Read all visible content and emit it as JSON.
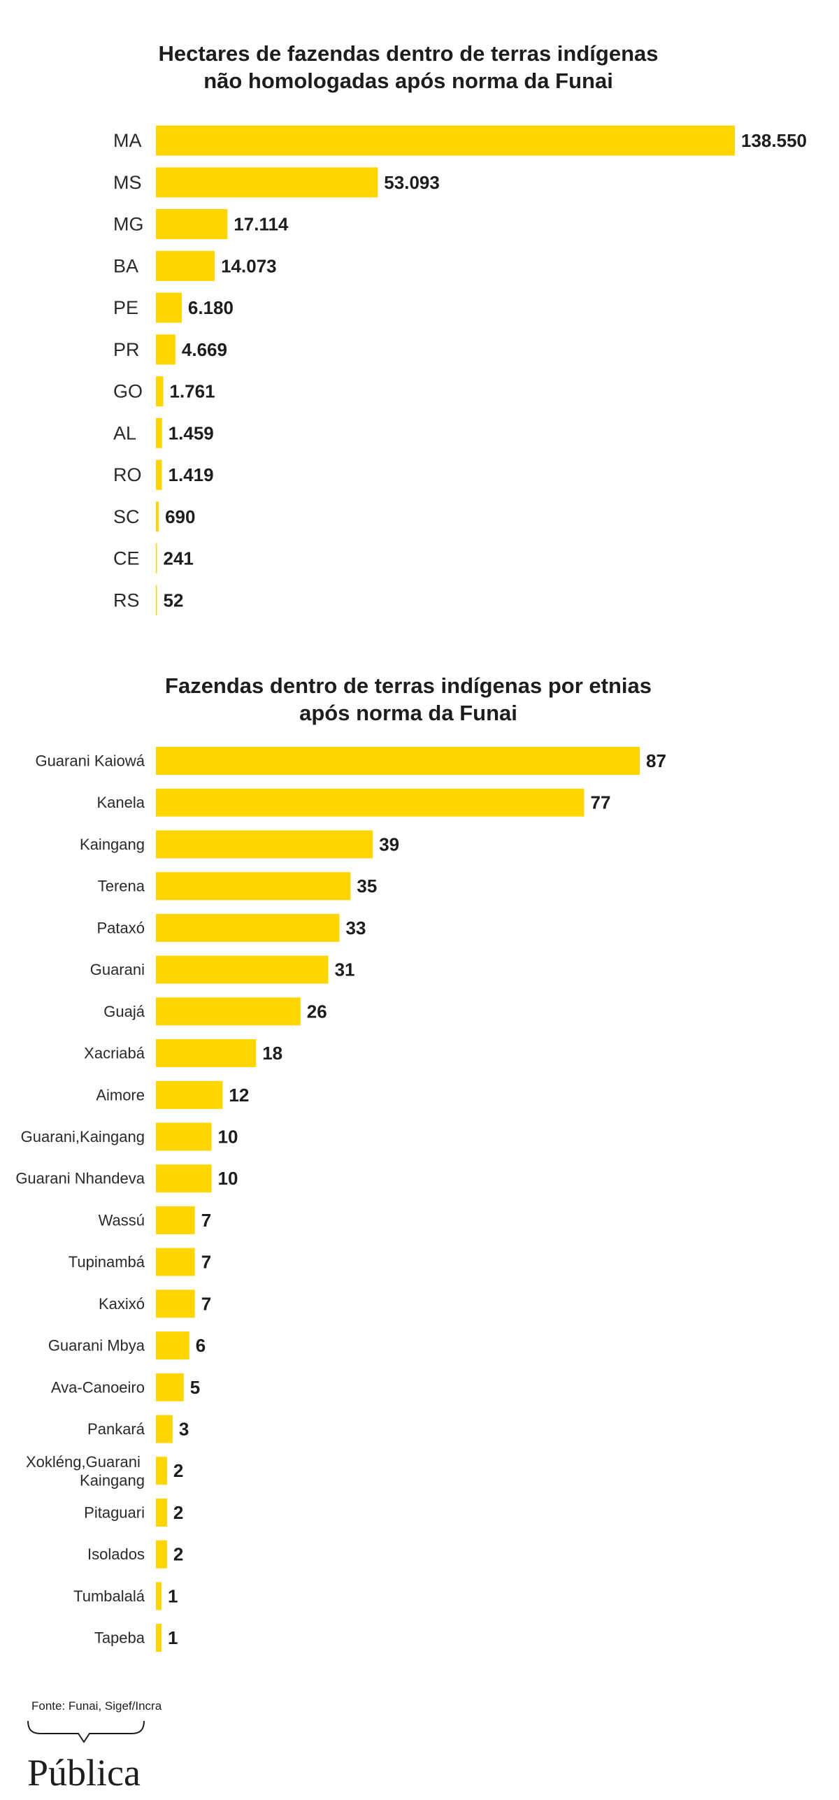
{
  "colors": {
    "background": "#ffffff",
    "bar": "#FFD500",
    "text": "#1d1d1b"
  },
  "chart_data": [
    {
      "type": "bar",
      "orientation": "horizontal",
      "title": "Hectares de fazendas dentro de terras indígenas\nnão homologadas após norma da Funai",
      "categories": [
        "MA",
        "MS",
        "MG",
        "BA",
        "PE",
        "PR",
        "GO",
        "AL",
        "RO",
        "SC",
        "CE",
        "RS"
      ],
      "values": [
        138550,
        53093,
        17114,
        14073,
        6180,
        4669,
        1761,
        1459,
        1419,
        690,
        241,
        52
      ],
      "xlim": [
        0,
        138550
      ],
      "grid": false,
      "legend": "none",
      "data_labels": true
    },
    {
      "type": "bar",
      "orientation": "horizontal",
      "title": "Fazendas dentro de terras indígenas por etnias\napós norma da Funai",
      "categories": [
        "Guarani Kaiowá",
        "Kanela",
        "Kaingang",
        "Terena",
        "Pataxó",
        "Guarani",
        "Guajá",
        "Xacriabá",
        "Aimore",
        "Guarani,Kaingang",
        "Guarani Nhandeva",
        "Wassú",
        "Tupinambá",
        "Kaxixó",
        "Guarani Mbya",
        "Ava-Canoeiro",
        "Pankará",
        "Xokléng,Guarani Kaingang",
        "Pitaguari",
        "Isolados",
        "Tumbalalá",
        "Tapeba"
      ],
      "values": [
        87,
        77,
        39,
        35,
        33,
        31,
        26,
        18,
        12,
        10,
        10,
        7,
        7,
        7,
        6,
        5,
        3,
        2,
        2,
        2,
        1,
        1
      ],
      "xlim": [
        0,
        87
      ],
      "grid": false,
      "legend": "none",
      "data_labels": true
    }
  ],
  "source": "Fonte: Funai, Sigef/Incra",
  "logo": {
    "text": "Pública",
    "icon": "speech-bracket-icon"
  }
}
